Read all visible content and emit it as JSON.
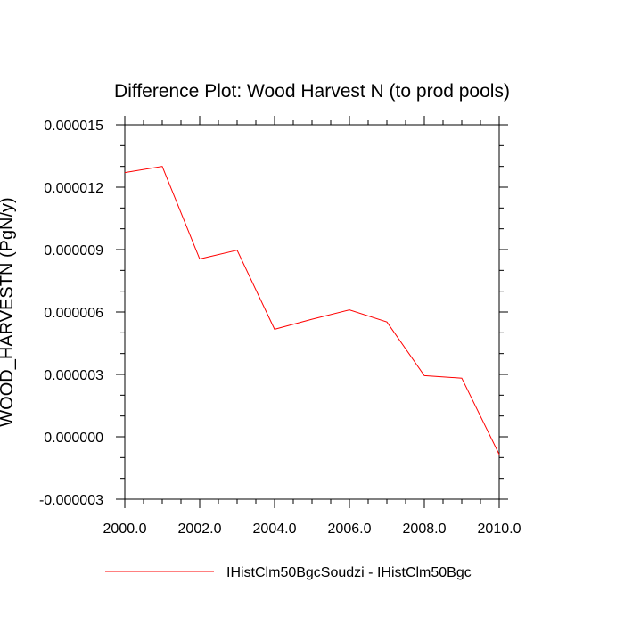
{
  "chart_data": {
    "type": "line",
    "title": "Difference Plot: Wood Harvest N (to prod pools)",
    "xlabel": "",
    "ylabel": "WOOD_HARVESTN  (PgN/y)",
    "xlim": [
      2000.0,
      2010.0
    ],
    "ylim": [
      -3e-06,
      1.5e-05
    ],
    "x_ticks": [
      "2000.0",
      "2002.0",
      "2004.0",
      "2006.0",
      "2008.0",
      "2010.0"
    ],
    "x_tick_values": [
      2000,
      2002,
      2004,
      2006,
      2008,
      2010
    ],
    "y_ticks": [
      "-0.000003",
      "0.000000",
      "0.000003",
      "0.000006",
      "0.000009",
      "0.000012",
      "0.000015"
    ],
    "y_tick_values": [
      -3e-06,
      0.0,
      3e-06,
      6e-06,
      9e-06,
      1.2e-05,
      1.5e-05
    ],
    "grid": false,
    "legend_position": "bottom",
    "series": [
      {
        "name": "IHistClm50BgcSoudzi - IHistClm50Bgc",
        "color": "#ff0000",
        "x": [
          2000,
          2001,
          2002,
          2003,
          2004,
          2005,
          2006,
          2007,
          2008,
          2009,
          2010
        ],
        "values": [
          1.27e-05,
          1.3e-05,
          8.55e-06,
          8.97e-06,
          5.17e-06,
          5.65e-06,
          6.1e-06,
          5.52e-06,
          2.94e-06,
          2.82e-06,
          -8.5e-07
        ]
      }
    ]
  }
}
